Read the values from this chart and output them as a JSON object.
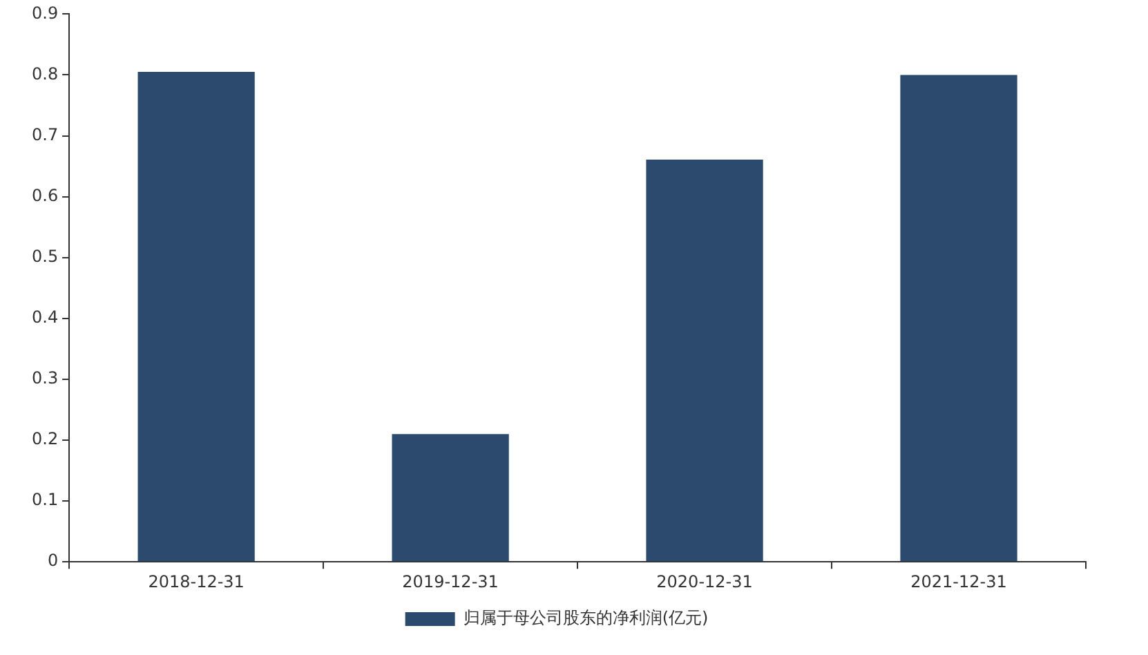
{
  "chart_data": {
    "type": "bar",
    "categories": [
      "2018-12-31",
      "2019-12-31",
      "2020-12-31",
      "2021-12-31"
    ],
    "series": [
      {
        "name": "归属于母公司股东的净利润(亿元)",
        "color": "#2c4a6e",
        "values": [
          0.805,
          0.21,
          0.661,
          0.8
        ]
      }
    ],
    "ylim": [
      0,
      0.9
    ],
    "yticks": [
      0,
      0.1,
      0.2,
      0.3,
      0.4,
      0.5,
      0.6,
      0.7,
      0.8,
      0.9
    ],
    "grid": false,
    "legend": "bottom"
  }
}
